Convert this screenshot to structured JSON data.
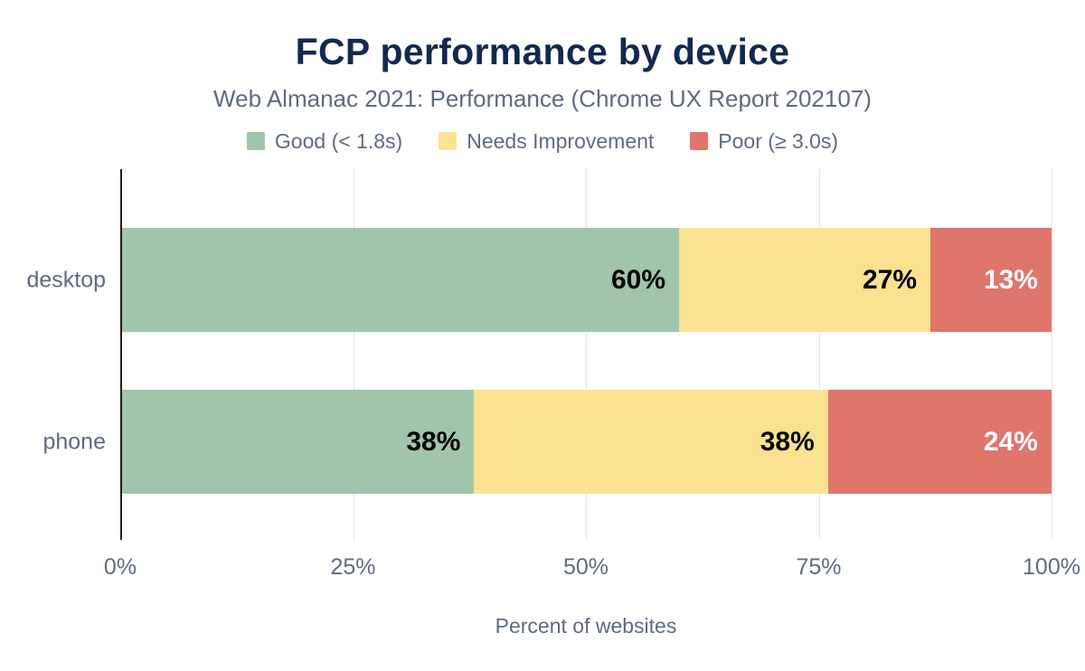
{
  "chart_data": {
    "type": "bar",
    "stacked": true,
    "orientation": "horizontal",
    "title": "FCP performance by device",
    "subtitle": "Web Almanac 2021: Performance (Chrome UX Report 202107)",
    "xlabel": "Percent of websites",
    "categories": [
      "desktop",
      "phone"
    ],
    "series": [
      {
        "name": "Good (< 1.8s)",
        "color": "#a1c5ab",
        "label_color": "#000000",
        "values": [
          60,
          38
        ]
      },
      {
        "name": "Needs Improvement",
        "color": "#fbe290",
        "label_color": "#000000",
        "values": [
          27,
          38
        ]
      },
      {
        "name": "Poor (≥ 3.0s)",
        "color": "#e0756c",
        "label_color": "#ffffff",
        "values": [
          13,
          24
        ]
      }
    ],
    "x_ticks": [
      "0%",
      "25%",
      "50%",
      "75%",
      "100%"
    ],
    "xlim": [
      0,
      100
    ],
    "grid": true,
    "legend_position": "top",
    "colors": {
      "title": "#14294e",
      "subtitle": "#5f6b7e",
      "axis_text": "#5f6b7e",
      "gridline": "#e1e4e8",
      "axis_line": "#1c1e21"
    }
  }
}
